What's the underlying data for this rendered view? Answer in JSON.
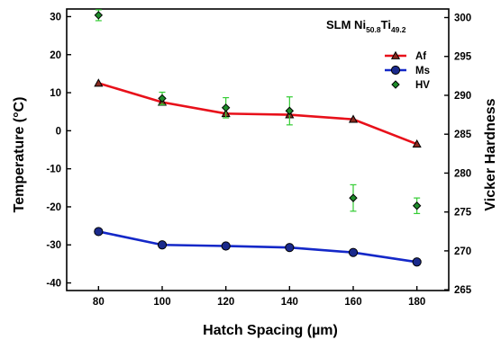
{
  "chart_data": {
    "type": "line",
    "title": "SLM Ni50.8Ti49.2",
    "title_parts": {
      "base": "SLM Ni",
      "sub1": "50.8",
      "mid": "Ti",
      "sub2": "49.2"
    },
    "xlabel": "Hatch Spacing (µm)",
    "ylabel": "Temperature (°C)",
    "y2label": "Vicker Hardness",
    "xlim": [
      70,
      190
    ],
    "ylim": [
      -42,
      32
    ],
    "y2lim": [
      264.9,
      301.1
    ],
    "x_ticks": [
      80,
      100,
      120,
      140,
      160,
      180
    ],
    "y_ticks": [
      30,
      20,
      10,
      0,
      -10,
      -20,
      -30,
      -40
    ],
    "y2_ticks": [
      300,
      295,
      290,
      285,
      280,
      275,
      270,
      265
    ],
    "x": [
      80,
      100,
      120,
      140,
      160,
      180
    ],
    "legend_position": "top-right",
    "series": [
      {
        "name": "Af",
        "axis": "left",
        "marker": "triangle",
        "color": "#e8101a",
        "marker_fill": "#8b2a20",
        "values": [
          12.5,
          7.5,
          4.5,
          4.2,
          3.0,
          -3.5
        ]
      },
      {
        "name": "Ms",
        "axis": "left",
        "marker": "circle",
        "color": "#1428c8",
        "marker_fill": "#1a2a8c",
        "values": [
          -26.5,
          -30.0,
          -30.3,
          -30.7,
          -32.0,
          -34.5
        ]
      },
      {
        "name": "HV",
        "axis": "right",
        "marker": "diamond",
        "color": "#1e8c2a",
        "error_color": "#33cc33",
        "values": [
          300.3,
          289.6,
          288.4,
          288.0,
          276.8,
          275.8
        ],
        "errors": [
          0.7,
          0.8,
          1.3,
          1.8,
          1.7,
          1.0
        ]
      }
    ]
  }
}
